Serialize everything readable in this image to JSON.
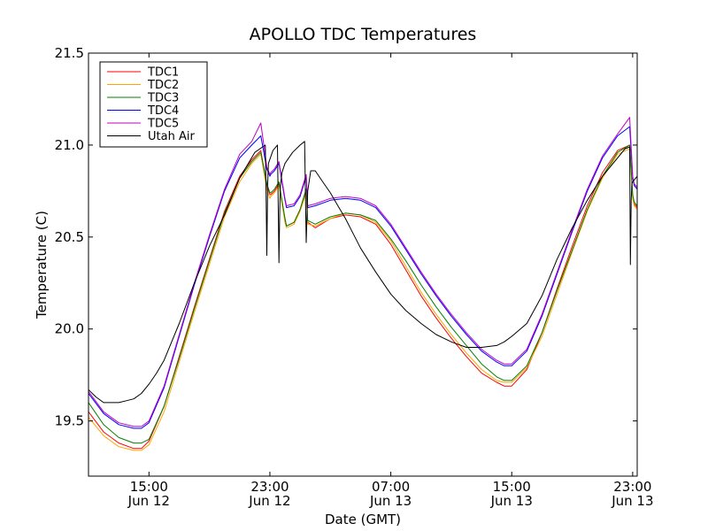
{
  "chart_data": {
    "type": "line",
    "title": "APOLLO TDC Temperatures",
    "xlabel": "Date (GMT)",
    "ylabel": "Temperature (C)",
    "xlim": [
      11.0,
      47.3
    ],
    "ylim": [
      19.2,
      21.5
    ],
    "x_unit": "hours since Jun 12 00:00 GMT",
    "x_ticks": [
      {
        "x": 15,
        "time": "15:00",
        "date": "Jun 12"
      },
      {
        "x": 23,
        "time": "23:00",
        "date": "Jun 12"
      },
      {
        "x": 31,
        "time": "07:00",
        "date": "Jun 13"
      },
      {
        "x": 39,
        "time": "15:00",
        "date": "Jun 13"
      },
      {
        "x": 47,
        "time": "23:00",
        "date": "Jun 13"
      }
    ],
    "y_ticks": [
      {
        "y": 19.5,
        "label": "19.5"
      },
      {
        "y": 20.0,
        "label": "20.0"
      },
      {
        "y": 20.5,
        "label": "20.5"
      },
      {
        "y": 21.0,
        "label": "21.0"
      },
      {
        "y": 21.5,
        "label": "21.5"
      }
    ],
    "grid": false,
    "legend_position": "top-left",
    "series": [
      {
        "name": "TDC1",
        "color": "#ff0000",
        "x": [
          11.0,
          12.0,
          13.0,
          14.0,
          14.5,
          15.0,
          16.0,
          17.0,
          18.0,
          19.0,
          20.0,
          21.0,
          21.8,
          22.4,
          22.8,
          23.0,
          23.05,
          23.3,
          23.6,
          24.0,
          24.1,
          24.6,
          25.0,
          25.4,
          25.5,
          26.0,
          27.0,
          28.0,
          29.0,
          30.0,
          31.0,
          32.0,
          33.0,
          34.0,
          35.0,
          36.0,
          37.0,
          38.0,
          38.5,
          39.0,
          40.0,
          41.0,
          42.0,
          43.0,
          44.0,
          45.0,
          46.0,
          46.8,
          47.0,
          47.1,
          47.3
        ],
        "y": [
          19.55,
          19.44,
          19.38,
          19.35,
          19.35,
          19.39,
          19.58,
          19.85,
          20.12,
          20.38,
          20.64,
          20.83,
          20.92,
          20.97,
          20.78,
          20.73,
          20.73,
          20.75,
          20.79,
          20.6,
          20.56,
          20.58,
          20.65,
          20.76,
          20.58,
          20.55,
          20.6,
          20.62,
          20.61,
          20.57,
          20.46,
          20.32,
          20.18,
          20.06,
          19.95,
          19.85,
          19.76,
          19.71,
          19.69,
          19.69,
          19.78,
          19.98,
          20.22,
          20.45,
          20.67,
          20.85,
          20.97,
          21.0,
          20.72,
          20.68,
          20.66
        ]
      },
      {
        "name": "TDC2",
        "color": "#ffa500",
        "x": [
          11.0,
          12.0,
          13.0,
          14.0,
          14.5,
          15.0,
          16.0,
          17.0,
          18.0,
          19.0,
          20.0,
          21.0,
          21.8,
          22.4,
          22.8,
          23.0,
          23.05,
          23.3,
          23.6,
          24.0,
          24.1,
          24.6,
          25.0,
          25.4,
          25.5,
          26.0,
          27.0,
          28.0,
          29.0,
          30.0,
          31.0,
          32.0,
          33.0,
          34.0,
          35.0,
          36.0,
          37.0,
          38.0,
          38.5,
          39.0,
          40.0,
          41.0,
          42.0,
          43.0,
          44.0,
          45.0,
          46.0,
          46.8,
          47.0,
          47.1,
          47.3
        ],
        "y": [
          19.52,
          19.42,
          19.36,
          19.34,
          19.34,
          19.37,
          19.55,
          19.82,
          20.09,
          20.35,
          20.61,
          20.8,
          20.9,
          20.95,
          20.76,
          20.71,
          20.72,
          20.74,
          20.78,
          20.58,
          20.55,
          20.57,
          20.64,
          20.74,
          20.57,
          20.56,
          20.6,
          20.63,
          20.62,
          20.58,
          20.48,
          20.34,
          20.2,
          20.08,
          19.97,
          19.87,
          19.78,
          19.72,
          19.71,
          19.71,
          19.79,
          19.96,
          20.19,
          20.42,
          20.64,
          20.82,
          20.95,
          20.98,
          20.71,
          20.67,
          20.65
        ]
      },
      {
        "name": "TDC3",
        "color": "#008000",
        "x": [
          11.0,
          12.0,
          13.0,
          14.0,
          14.5,
          15.0,
          16.0,
          17.0,
          18.0,
          19.0,
          20.0,
          21.0,
          21.8,
          22.4,
          22.8,
          23.0,
          23.05,
          23.3,
          23.6,
          24.0,
          24.1,
          24.6,
          25.0,
          25.4,
          25.5,
          26.0,
          27.0,
          28.0,
          29.0,
          30.0,
          31.0,
          32.0,
          33.0,
          34.0,
          35.0,
          36.0,
          37.0,
          38.0,
          38.5,
          39.0,
          40.0,
          41.0,
          42.0,
          43.0,
          44.0,
          45.0,
          46.0,
          46.8,
          47.0,
          47.1,
          47.3
        ],
        "y": [
          19.6,
          19.48,
          19.41,
          19.38,
          19.38,
          19.4,
          19.58,
          19.84,
          20.11,
          20.37,
          20.63,
          20.82,
          20.91,
          20.96,
          20.79,
          20.74,
          20.74,
          20.76,
          20.8,
          20.6,
          20.56,
          20.58,
          20.65,
          20.76,
          20.59,
          20.57,
          20.61,
          20.63,
          20.62,
          20.59,
          20.49,
          20.37,
          20.24,
          20.12,
          20.01,
          19.91,
          19.81,
          19.74,
          19.72,
          19.72,
          19.8,
          19.98,
          20.21,
          20.43,
          20.65,
          20.83,
          20.96,
          21.0,
          20.73,
          20.69,
          20.67
        ]
      },
      {
        "name": "TDC4",
        "color": "#0000ff",
        "x": [
          11.0,
          12.0,
          13.0,
          14.0,
          14.5,
          15.0,
          16.0,
          17.0,
          18.0,
          19.0,
          20.0,
          21.0,
          21.8,
          22.4,
          22.8,
          23.0,
          23.05,
          23.3,
          23.6,
          24.0,
          24.1,
          24.6,
          25.0,
          25.4,
          25.5,
          26.0,
          27.0,
          28.0,
          29.0,
          30.0,
          31.0,
          32.0,
          33.0,
          34.0,
          35.0,
          36.0,
          37.0,
          38.0,
          38.5,
          39.0,
          40.0,
          41.0,
          42.0,
          43.0,
          44.0,
          45.0,
          46.0,
          46.8,
          47.0,
          47.1,
          47.3
        ],
        "y": [
          19.65,
          19.54,
          19.48,
          19.46,
          19.46,
          19.49,
          19.68,
          19.96,
          20.24,
          20.5,
          20.75,
          20.93,
          21.0,
          21.05,
          20.87,
          20.83,
          20.84,
          20.86,
          20.9,
          20.7,
          20.66,
          20.67,
          20.72,
          20.83,
          20.66,
          20.67,
          20.7,
          20.71,
          20.7,
          20.66,
          20.56,
          20.43,
          20.3,
          20.18,
          20.07,
          19.97,
          19.88,
          19.82,
          19.8,
          19.8,
          19.88,
          20.07,
          20.3,
          20.53,
          20.75,
          20.93,
          21.05,
          21.1,
          20.82,
          20.78,
          20.76
        ]
      },
      {
        "name": "TDC5",
        "color": "#bf00bf",
        "x": [
          11.0,
          12.0,
          13.0,
          14.0,
          14.5,
          15.0,
          16.0,
          17.0,
          18.0,
          19.0,
          20.0,
          21.0,
          21.8,
          22.4,
          22.8,
          23.0,
          23.05,
          23.3,
          23.6,
          24.0,
          24.1,
          24.6,
          25.0,
          25.4,
          25.5,
          26.0,
          27.0,
          28.0,
          29.0,
          30.0,
          31.0,
          32.0,
          33.0,
          34.0,
          35.0,
          36.0,
          37.0,
          38.0,
          38.5,
          39.0,
          40.0,
          41.0,
          42.0,
          43.0,
          44.0,
          45.0,
          46.0,
          46.8,
          47.0,
          47.1,
          47.3
        ],
        "y": [
          19.66,
          19.55,
          19.49,
          19.47,
          19.47,
          19.5,
          19.69,
          19.97,
          20.25,
          20.51,
          20.76,
          20.95,
          21.02,
          21.12,
          20.88,
          20.84,
          20.85,
          20.87,
          20.91,
          20.71,
          20.67,
          20.68,
          20.73,
          20.84,
          20.67,
          20.68,
          20.71,
          20.72,
          20.71,
          20.67,
          20.57,
          20.44,
          20.31,
          20.19,
          20.08,
          19.98,
          19.89,
          19.83,
          19.81,
          19.81,
          19.89,
          20.08,
          20.31,
          20.54,
          20.76,
          20.94,
          21.06,
          21.15,
          20.83,
          20.79,
          20.77
        ]
      },
      {
        "name": "Utah Air",
        "color": "#000000",
        "x": [
          11.0,
          11.5,
          12.0,
          12.5,
          13.0,
          13.5,
          14.0,
          14.5,
          15.0,
          15.5,
          16.0,
          17.0,
          18.0,
          19.0,
          20.0,
          21.0,
          22.0,
          22.7,
          22.75,
          22.8,
          22.85,
          22.9,
          23.2,
          23.5,
          23.6,
          23.65,
          23.7,
          23.8,
          24.0,
          24.5,
          25.0,
          25.3,
          25.4,
          25.45,
          25.5,
          25.7,
          26.0,
          26.5,
          27.0,
          27.5,
          28.0,
          28.5,
          29.0,
          30.0,
          31.0,
          32.0,
          33.0,
          34.0,
          35.0,
          36.0,
          37.0,
          38.0,
          38.5,
          39.0,
          40.0,
          41.0,
          42.0,
          43.0,
          44.0,
          45.0,
          46.0,
          46.5,
          46.8,
          46.85,
          46.9,
          46.95,
          47.0,
          47.3
        ],
        "y": [
          19.67,
          19.63,
          19.6,
          19.6,
          19.6,
          19.61,
          19.62,
          19.65,
          19.7,
          19.76,
          19.83,
          20.03,
          20.25,
          20.45,
          20.62,
          20.82,
          20.96,
          21.0,
          20.72,
          20.4,
          20.78,
          20.9,
          20.97,
          21.0,
          20.36,
          20.65,
          20.78,
          20.85,
          20.9,
          20.96,
          21.0,
          21.02,
          20.47,
          20.6,
          20.75,
          20.86,
          20.86,
          20.8,
          20.74,
          20.67,
          20.6,
          20.52,
          20.44,
          20.31,
          20.19,
          20.1,
          20.03,
          19.97,
          19.93,
          19.9,
          19.9,
          19.91,
          19.93,
          19.96,
          20.03,
          20.18,
          20.38,
          20.55,
          20.7,
          20.83,
          20.93,
          20.98,
          20.99,
          20.35,
          20.7,
          20.79,
          20.8,
          20.83
        ]
      }
    ]
  }
}
